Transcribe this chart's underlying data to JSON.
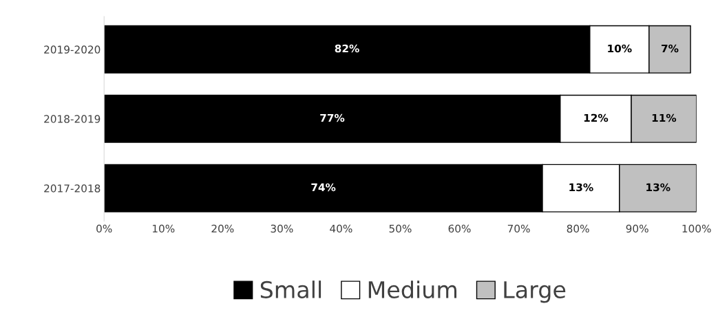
{
  "chart_data": {
    "type": "bar",
    "orientation": "horizontal",
    "stacked": true,
    "categories": [
      "2019-2020",
      "2018-2019",
      "2017-2018"
    ],
    "series": [
      {
        "name": "Small",
        "color": "#000000",
        "values": [
          82,
          77,
          74
        ],
        "value_labels": [
          "82%",
          "77%",
          "74%"
        ]
      },
      {
        "name": "Medium",
        "color": "#ffffff",
        "values": [
          10,
          12,
          13
        ],
        "value_labels": [
          "10%",
          "12%",
          "13%"
        ]
      },
      {
        "name": "Large",
        "color": "#c0c0c0",
        "values": [
          7,
          11,
          13
        ],
        "value_labels": [
          "7%",
          "11%",
          "13%"
        ]
      }
    ],
    "xlim": [
      0,
      100
    ],
    "xticks": [
      {
        "value": 0,
        "label": "0%"
      },
      {
        "value": 10,
        "label": "10%"
      },
      {
        "value": 20,
        "label": "20%"
      },
      {
        "value": 30,
        "label": "30%"
      },
      {
        "value": 40,
        "label": "40%"
      },
      {
        "value": 50,
        "label": "50%"
      },
      {
        "value": 60,
        "label": "60%"
      },
      {
        "value": 70,
        "label": "70%"
      },
      {
        "value": 80,
        "label": "80%"
      },
      {
        "value": 90,
        "label": "90%"
      },
      {
        "value": 100,
        "label": "100%"
      }
    ],
    "grid": false,
    "legend": "bottom"
  }
}
